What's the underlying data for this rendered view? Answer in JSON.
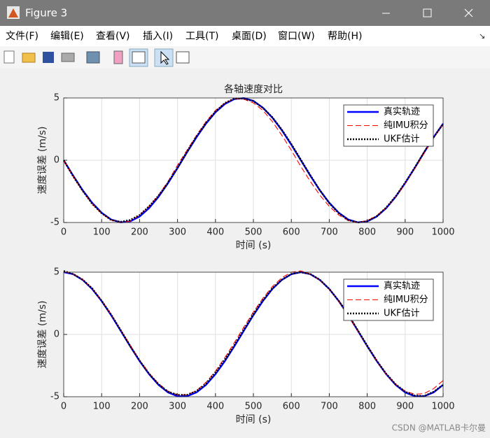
{
  "window": {
    "title": "Figure 3"
  },
  "menu": [
    "文件(F)",
    "编辑(E)",
    "查看(V)",
    "插入(I)",
    "工具(T)",
    "桌面(D)",
    "窗口(W)",
    "帮助(H)"
  ],
  "chart_data": [
    {
      "type": "line",
      "title": "各轴速度对比",
      "xlabel": "时间 (s)",
      "ylabel": "速度误差 (m/s)",
      "x": [
        0,
        25,
        50,
        75,
        100,
        125,
        150,
        175,
        200,
        225,
        250,
        275,
        300,
        325,
        350,
        375,
        400,
        425,
        450,
        475,
        500,
        525,
        550,
        575,
        600,
        625,
        650,
        675,
        700,
        725,
        750,
        775,
        800,
        825,
        850,
        875,
        900,
        925,
        950,
        975,
        1000
      ],
      "xlim": [
        0,
        1000
      ],
      "xticks": [
        0,
        100,
        200,
        300,
        400,
        500,
        600,
        700,
        800,
        900,
        1000
      ],
      "ylim": [
        -5,
        5
      ],
      "yticks": [
        -5,
        0,
        5
      ],
      "grid": true,
      "legend": "northeast",
      "series": [
        {
          "name": "真实轨迹",
          "color": "#0000ff",
          "style": "solid",
          "values": [
            0,
            -1.24,
            -2.41,
            -3.42,
            -4.22,
            -4.76,
            -4.99,
            -4.91,
            -4.52,
            -3.85,
            -2.94,
            -1.84,
            -0.63,
            0.63,
            1.84,
            2.94,
            3.85,
            4.52,
            4.91,
            4.99,
            4.76,
            4.22,
            3.42,
            2.41,
            1.24,
            0,
            -1.24,
            -2.41,
            -3.42,
            -4.22,
            -4.76,
            -4.99,
            -4.91,
            -4.52,
            -3.85,
            -2.94,
            -1.84,
            -0.63,
            0.63,
            1.84,
            2.94
          ]
        },
        {
          "name": "纯IMU积分",
          "color": "#ff0000",
          "style": "dashed",
          "values": [
            0,
            -1.3,
            -2.5,
            -3.5,
            -4.3,
            -4.8,
            -5.0,
            -4.9,
            -4.4,
            -3.7,
            -2.8,
            -1.7,
            -0.4,
            0.8,
            2.0,
            3.1,
            4.0,
            4.6,
            4.95,
            4.9,
            4.6,
            4.0,
            3.1,
            2.0,
            0.8,
            -0.5,
            -1.7,
            -2.8,
            -3.7,
            -4.4,
            -4.85,
            -5.0,
            -4.85,
            -4.45,
            -3.8,
            -2.95,
            -1.9,
            -0.7,
            0.55,
            1.8,
            2.85
          ]
        },
        {
          "name": "UKF估计",
          "color": "#000000",
          "style": "dotted",
          "values": [
            0,
            -1.3,
            -2.45,
            -3.5,
            -4.25,
            -4.8,
            -4.95,
            -4.8,
            -4.4,
            -3.7,
            -2.85,
            -1.8,
            -0.6,
            0.7,
            1.9,
            3.0,
            3.9,
            4.6,
            4.95,
            4.95,
            4.75,
            4.2,
            3.45,
            2.45,
            1.3,
            0.05,
            -1.2,
            -2.4,
            -3.45,
            -4.25,
            -4.8,
            -5.0,
            -4.9,
            -4.5,
            -3.8,
            -2.9,
            -1.8,
            -0.6,
            0.65,
            1.85,
            2.9
          ]
        }
      ]
    },
    {
      "type": "line",
      "xlabel": "时间 (s)",
      "ylabel": "速度误差 (m/s)",
      "x": [
        0,
        25,
        50,
        75,
        100,
        125,
        150,
        175,
        200,
        225,
        250,
        275,
        300,
        325,
        350,
        375,
        400,
        425,
        450,
        475,
        500,
        525,
        550,
        575,
        600,
        625,
        650,
        675,
        700,
        725,
        750,
        775,
        800,
        825,
        850,
        875,
        900,
        925,
        950,
        975,
        1000
      ],
      "xlim": [
        0,
        1000
      ],
      "xticks": [
        0,
        100,
        200,
        300,
        400,
        500,
        600,
        700,
        800,
        900,
        1000
      ],
      "ylim": [
        -5,
        5
      ],
      "yticks": [
        -5,
        0,
        5
      ],
      "grid": true,
      "legend": "northeast",
      "series": [
        {
          "name": "真实轨迹",
          "color": "#0000ff",
          "style": "solid",
          "values": [
            5,
            4.84,
            4.38,
            3.65,
            2.68,
            1.55,
            0.31,
            -0.94,
            -2.13,
            -3.19,
            -4.05,
            -4.65,
            -4.96,
            -4.96,
            -4.65,
            -4.05,
            -3.19,
            -2.13,
            -0.94,
            0.31,
            1.55,
            2.68,
            3.65,
            4.38,
            4.84,
            5,
            4.84,
            4.38,
            3.65,
            2.68,
            1.55,
            0.31,
            -0.94,
            -2.13,
            -3.19,
            -4.05,
            -4.65,
            -4.96,
            -4.96,
            -4.65,
            -4.05
          ]
        },
        {
          "name": "纯IMU积分",
          "color": "#ff0000",
          "style": "dashed",
          "values": [
            5.05,
            4.85,
            4.4,
            3.7,
            2.75,
            1.6,
            0.4,
            -0.85,
            -2.05,
            -3.1,
            -3.95,
            -4.55,
            -4.85,
            -4.85,
            -4.5,
            -3.85,
            -2.95,
            -1.85,
            -0.65,
            0.6,
            1.8,
            2.9,
            3.85,
            4.55,
            5.0,
            5.1,
            4.85,
            4.35,
            3.6,
            2.65,
            1.5,
            0.3,
            -0.95,
            -2.15,
            -3.2,
            -4.0,
            -4.55,
            -4.8,
            -4.75,
            -4.35,
            -3.7
          ]
        },
        {
          "name": "UKF估计",
          "color": "#000000",
          "style": "dotted",
          "values": [
            5.1,
            4.85,
            4.4,
            3.7,
            2.7,
            1.6,
            0.35,
            -0.9,
            -2.1,
            -3.15,
            -4.0,
            -4.6,
            -4.85,
            -4.85,
            -4.55,
            -3.95,
            -3.05,
            -2.0,
            -0.85,
            0.4,
            1.65,
            2.75,
            3.7,
            4.4,
            4.85,
            5.0,
            4.85,
            4.4,
            3.65,
            2.7,
            1.6,
            0.35,
            -0.9,
            -2.1,
            -3.15,
            -4.0,
            -4.6,
            -4.9,
            -4.95,
            -4.6,
            -4.05
          ]
        }
      ]
    }
  ],
  "watermark": "CSDN @MATLAB卡尔曼"
}
